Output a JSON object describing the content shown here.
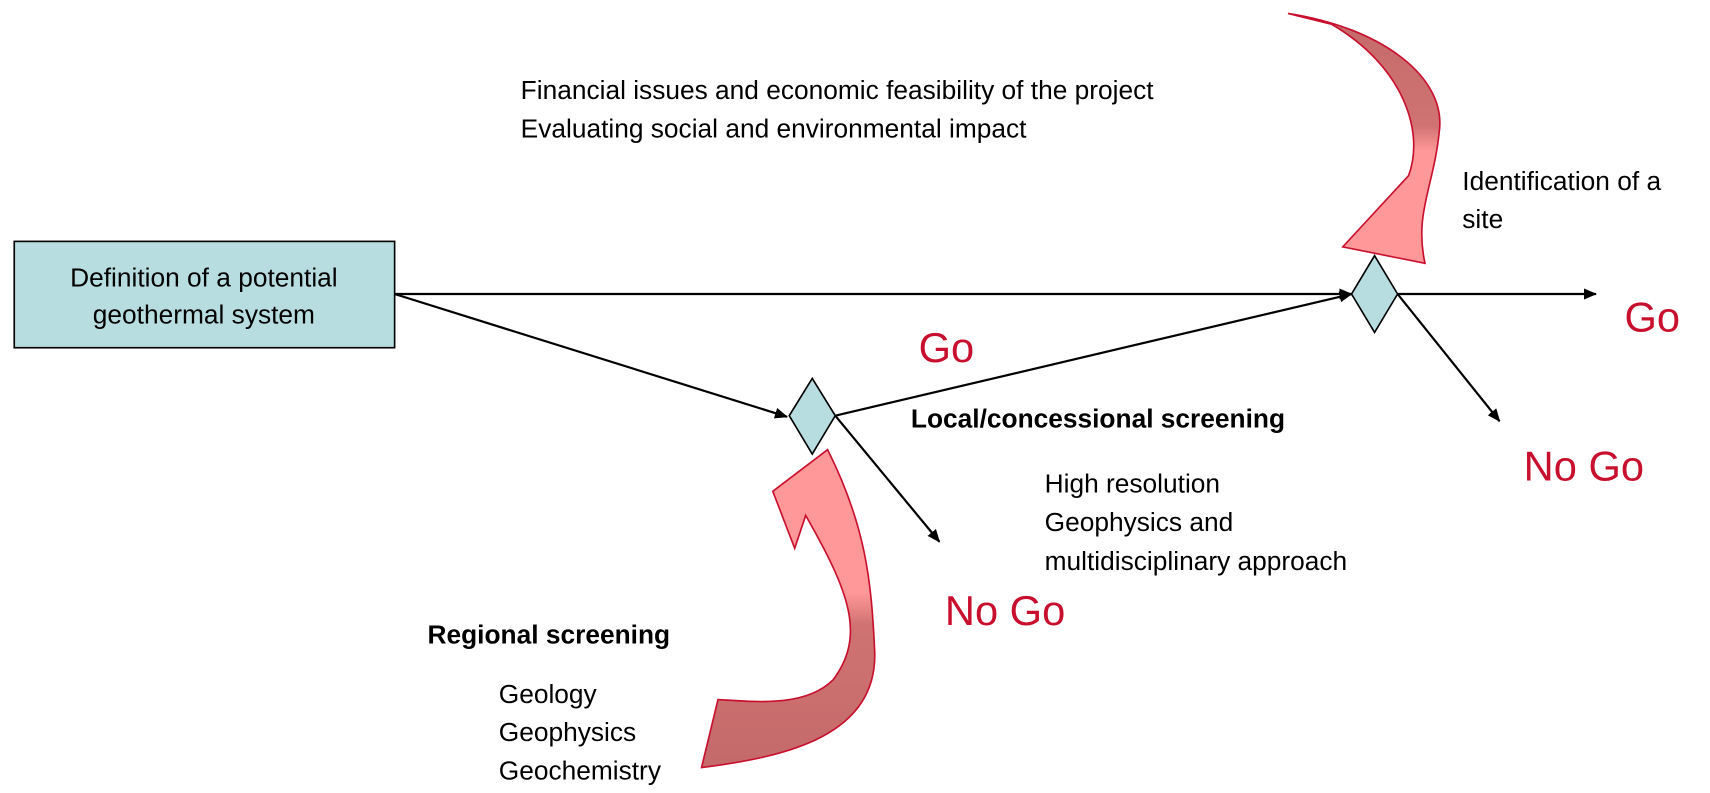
{
  "box": {
    "lines": [
      "Definition of a potential",
      "geothermal system"
    ]
  },
  "financial": [
    "Financial issues and economic feasibility of the project",
    "Evaluating social and environmental impact"
  ],
  "identification": [
    "Identification of a",
    "site"
  ],
  "go_top": "Go",
  "go_right": "Go",
  "nogo_right": "No Go",
  "nogo_bottom": "No Go",
  "local": {
    "title": "Local/concessional screening",
    "lines": [
      "High resolution",
      "Geophysics and",
      "multidisciplinary approach"
    ]
  },
  "regional": {
    "title": "Regional screening",
    "lines": [
      "Geology",
      "Geophysics",
      "Geochemistry"
    ]
  }
}
